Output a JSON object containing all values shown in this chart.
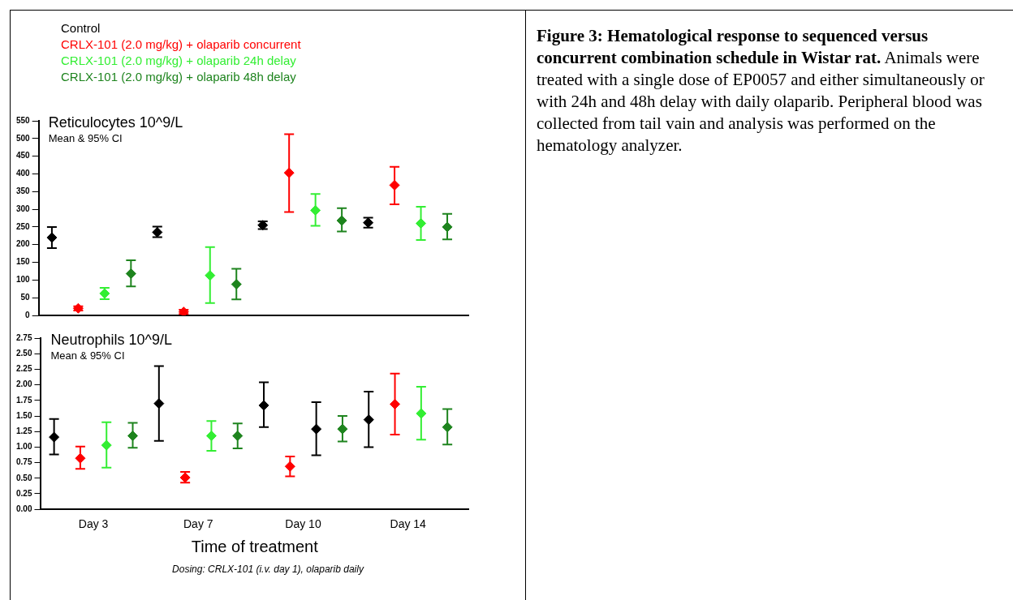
{
  "chart_data": [
    {
      "type": "scatter",
      "title": "Reticulocytes 10^9/L",
      "subtitle": "Mean & 95% CI",
      "categories": [
        null,
        null,
        null,
        null
      ],
      "tick_labels": "y",
      "ylim": [
        0,
        550
      ],
      "yticks": [
        0,
        50,
        100,
        150,
        200,
        250,
        300,
        350,
        400,
        450,
        500,
        550
      ],
      "grid": false,
      "legend": "top left",
      "marker": "diamond",
      "series": [
        {
          "name": "Control",
          "color": "#000000",
          "values": [
            220,
            235,
            255,
            262
          ],
          "errors": [
            [
              190,
              250
            ],
            [
              221,
              251
            ],
            [
              244,
              266
            ],
            [
              248,
              276
            ]
          ]
        },
        {
          "name": "CRLX-101  (2.0 mg/kg) + olaparib  concurrent",
          "color": "#ff0000",
          "values": [
            20,
            10,
            403,
            368
          ],
          "errors": [
            [
              14,
              26
            ],
            [
              4,
              16
            ],
            [
              292,
              512
            ],
            [
              314,
              420
            ]
          ]
        },
        {
          "name": "CRLX-101  (2.0 mg/kg) + olaparib  24h delay",
          "color": "#33ee33",
          "values": [
            62,
            113,
            297,
            260
          ],
          "errors": [
            [
              46,
              78
            ],
            [
              35,
              193
            ],
            [
              253,
              343
            ],
            [
              213,
              307
            ]
          ]
        },
        {
          "name": "CRLX-101  (2.0 mg/kg) + olaparib  48h delay",
          "color": "#1e841e",
          "values": [
            118,
            88,
            268,
            250
          ],
          "errors": [
            [
              82,
              156
            ],
            [
              45,
              132
            ],
            [
              237,
              303
            ],
            [
              215,
              287
            ]
          ]
        }
      ]
    },
    {
      "type": "scatter",
      "title": "Neutrophils 10^9/L",
      "subtitle": "Mean & 95% CI",
      "xlabel": "Time of treatment",
      "annotations": [
        "Dosing: CRLX-101 (i.v. day 1), olaparib daily"
      ],
      "categories": [
        "Day 3",
        "Day 7",
        "Day 10",
        "Day 14"
      ],
      "ylim": [
        0,
        2.75
      ],
      "yticks": [
        {
          "value": 0,
          "label": "0.00"
        },
        {
          "value": 0.25,
          "label": "0.25"
        },
        {
          "value": 0.5,
          "label": "0.50"
        },
        {
          "value": 0.75,
          "label": "0.75"
        },
        {
          "value": 1,
          "label": "1.00"
        },
        {
          "value": 1.25,
          "label": "1.25"
        },
        {
          "value": 1.5,
          "label": "1.50"
        },
        {
          "value": 1.75,
          "label": "1.75"
        },
        {
          "value": 2,
          "label": "2.00"
        },
        {
          "value": 2.25,
          "label": "2.25"
        },
        {
          "value": 2.5,
          "label": "2.50"
        },
        {
          "value": 2.75,
          "label": "2.75"
        }
      ],
      "grid": false,
      "marker": "diamond",
      "series": [
        {
          "color": "#000000",
          "values": [
            1.16,
            1.7,
            1.67,
            1.44
          ],
          "errors": [
            [
              0.88,
              1.45
            ],
            [
              1.1,
              2.3
            ],
            [
              1.32,
              2.04
            ],
            [
              1.0,
              1.89
            ]
          ]
        },
        {
          "color": "#ff0000",
          "values": [
            0.82,
            0.51,
            0.69,
            1.69
          ],
          "errors": [
            [
              0.65,
              1.01
            ],
            [
              0.43,
              0.6
            ],
            [
              0.53,
              0.85
            ],
            [
              1.2,
              2.18
            ]
          ]
        },
        {
          "color": "#33ee33",
          "colors": [
            "#33ee33",
            "#33ee33",
            "#000000",
            "#33ee33"
          ],
          "values": [
            1.03,
            1.18,
            1.29,
            1.54
          ],
          "errors": [
            [
              0.67,
              1.4
            ],
            [
              0.94,
              1.42
            ],
            [
              0.87,
              1.72
            ],
            [
              1.12,
              1.97
            ]
          ]
        },
        {
          "color": "#1e841e",
          "values": [
            1.18,
            1.18,
            1.29,
            1.32
          ],
          "errors": [
            [
              0.99,
              1.39
            ],
            [
              0.98,
              1.38
            ],
            [
              1.09,
              1.5
            ],
            [
              1.04,
              1.61
            ]
          ]
        }
      ]
    },
    {
      "type": "other",
      "title": "Figure 3: Hematological response to sequenced versus concurrent combination schedule in Wistar rat.",
      "annotations": [
        "Animals were treated with a single dose of EP0057 and either simultaneously or with 24h and 48h delay with daily olaparib. Peripheral blood was collected from tail vain and analysis was performed on the hematology analyzer."
      ]
    }
  ]
}
